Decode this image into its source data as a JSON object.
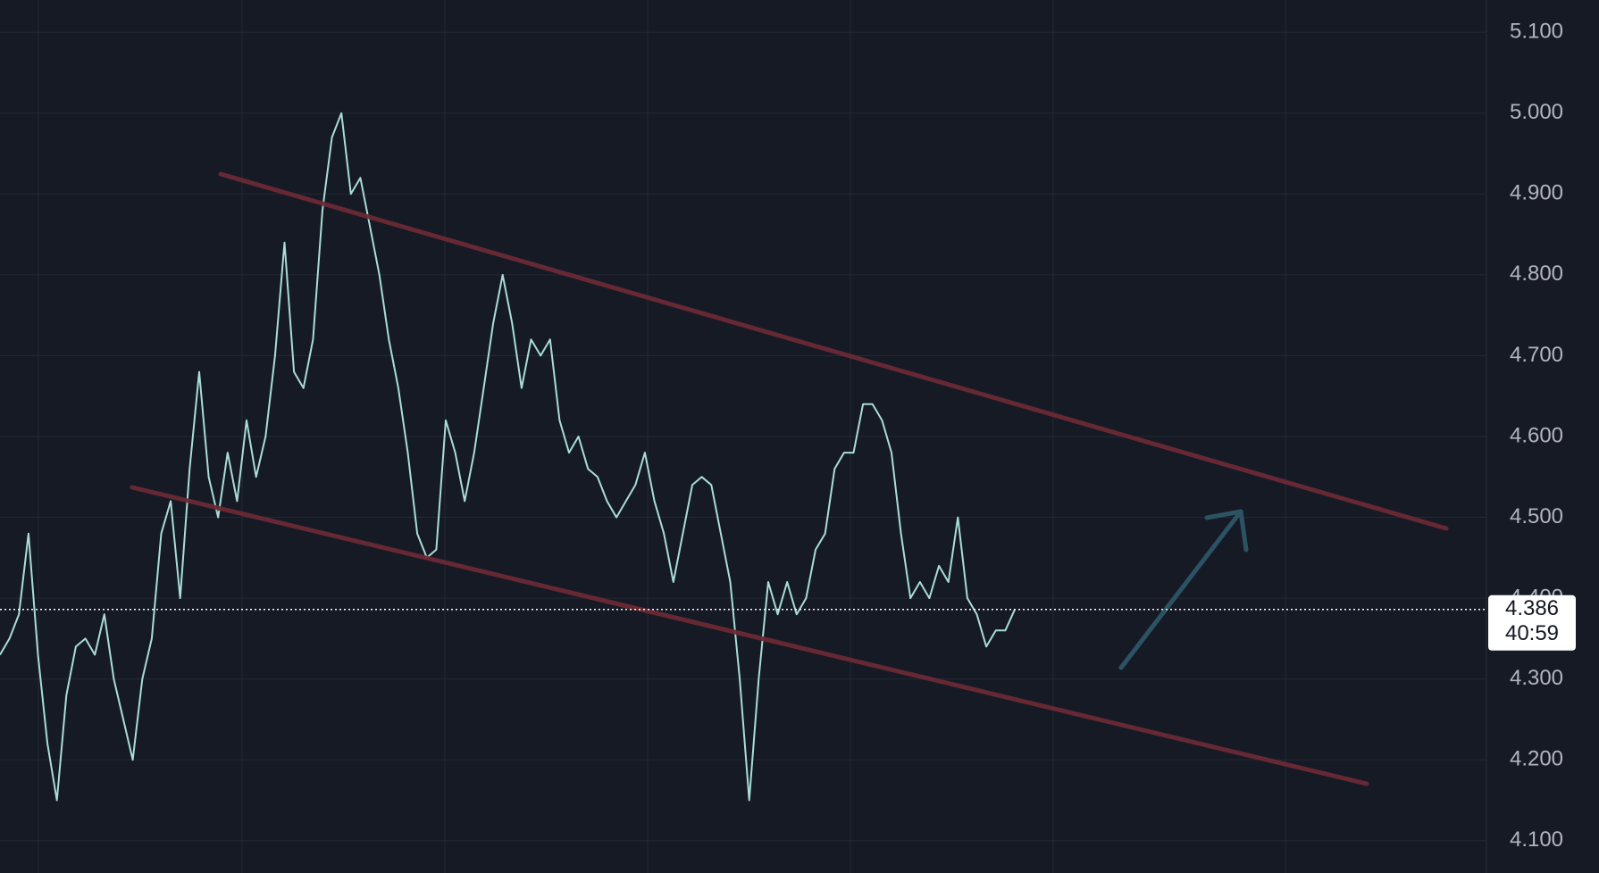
{
  "chart_data": {
    "type": "line",
    "color": "#a9ddd6",
    "values": [
      4.33,
      4.35,
      4.38,
      4.48,
      4.33,
      4.22,
      4.15,
      4.28,
      4.34,
      4.35,
      4.33,
      4.38,
      4.3,
      4.25,
      4.2,
      4.3,
      4.35,
      4.48,
      4.52,
      4.4,
      4.56,
      4.68,
      4.55,
      4.5,
      4.58,
      4.52,
      4.62,
      4.55,
      4.6,
      4.7,
      4.84,
      4.68,
      4.66,
      4.72,
      4.88,
      4.97,
      5.0,
      4.9,
      4.92,
      4.86,
      4.8,
      4.72,
      4.66,
      4.58,
      4.48,
      4.45,
      4.46,
      4.62,
      4.58,
      4.52,
      4.58,
      4.66,
      4.74,
      4.8,
      4.74,
      4.66,
      4.72,
      4.7,
      4.72,
      4.62,
      4.58,
      4.6,
      4.56,
      4.55,
      4.52,
      4.5,
      4.52,
      4.54,
      4.58,
      4.52,
      4.48,
      4.42,
      4.48,
      4.54,
      4.55,
      4.54,
      4.48,
      4.42,
      4.3,
      4.15,
      4.3,
      4.42,
      4.38,
      4.42,
      4.38,
      4.4,
      4.46,
      4.48,
      4.56,
      4.58,
      4.58,
      4.64,
      4.64,
      4.62,
      4.58,
      4.48,
      4.4,
      4.42,
      4.4,
      4.44,
      4.42,
      4.5,
      4.4,
      4.38,
      4.34,
      4.36,
      4.36,
      4.386
    ],
    "ylim": [
      4.06,
      5.14
    ],
    "yticks": [
      {
        "value": 4.1,
        "label": "4.100"
      },
      {
        "value": 4.2,
        "label": "4.200"
      },
      {
        "value": 4.3,
        "label": "4.300"
      },
      {
        "value": 4.4,
        "label": "4.400"
      },
      {
        "value": 4.5,
        "label": "4.500"
      },
      {
        "value": 4.6,
        "label": "4.600"
      },
      {
        "value": 4.7,
        "label": "4.700"
      },
      {
        "value": 4.8,
        "label": "4.800"
      },
      {
        "value": 4.9,
        "label": "4.900"
      },
      {
        "value": 5.0,
        "label": "5.000"
      },
      {
        "value": 5.1,
        "label": "5.100"
      }
    ],
    "grid": true,
    "last_price": 4.386,
    "countdown": "40:59"
  }
}
